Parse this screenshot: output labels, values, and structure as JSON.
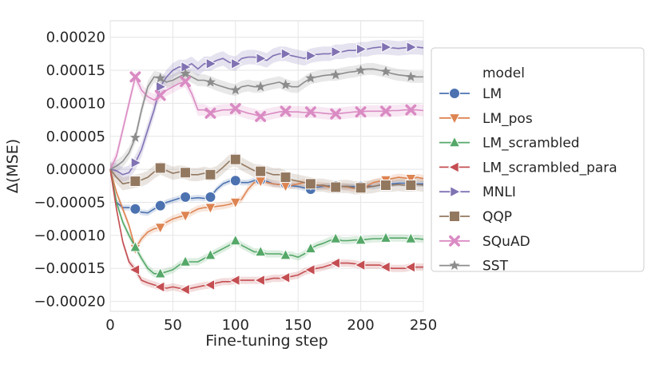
{
  "chart_data": {
    "type": "line",
    "title": "",
    "xlabel": "Fine-tuning step",
    "ylabel": "Δ(MSE)",
    "xlim": [
      0,
      250
    ],
    "ylim": [
      -0.000215,
      0.000225
    ],
    "grid": true,
    "legend_title": "model",
    "legend_position": "outside-right",
    "x_ticks": [
      0,
      50,
      100,
      150,
      200,
      250
    ],
    "x_tick_labels": [
      "0",
      "50",
      "100",
      "150",
      "200",
      "250"
    ],
    "y_ticks": [
      -0.0002,
      -0.00015,
      -0.0001,
      -5e-05,
      0,
      5e-05,
      0.0001,
      0.00015,
      0.0002
    ],
    "y_tick_labels": [
      "−0.00020",
      "−0.00015",
      "−0.00010",
      "−0.00005",
      "0.00000",
      "0.00005",
      "0.00010",
      "0.00015",
      "0.00020"
    ],
    "x": [
      0,
      5,
      10,
      15,
      20,
      25,
      30,
      35,
      40,
      45,
      50,
      55,
      60,
      65,
      70,
      75,
      80,
      85,
      90,
      95,
      100,
      105,
      110,
      115,
      120,
      125,
      130,
      135,
      140,
      145,
      150,
      155,
      160,
      165,
      170,
      175,
      180,
      185,
      190,
      195,
      200,
      205,
      210,
      215,
      220,
      225,
      230,
      235,
      240,
      245,
      250
    ],
    "marker_every": 4,
    "series": [
      {
        "name": "LM",
        "color": "#4c72b0",
        "marker": "circle",
        "values": [
          0,
          -5e-05,
          -5.8e-05,
          -5.8e-05,
          -6e-05,
          -6.5e-05,
          -6.6e-05,
          -6e-05,
          -5.5e-05,
          -5e-05,
          -4.7e-05,
          -4.4e-05,
          -4.2e-05,
          -4.4e-05,
          -4.3e-05,
          -4.4e-05,
          -4.2e-05,
          -3e-05,
          -2.2e-05,
          -1.8e-05,
          -1.7e-05,
          -2e-05,
          -2e-05,
          -1.7e-05,
          -1.6e-05,
          -1.8e-05,
          -2.2e-05,
          -2.3e-05,
          -2.2e-05,
          -2.5e-05,
          -2.6e-05,
          -2.8e-05,
          -3e-05,
          -2.7e-05,
          -2.6e-05,
          -2.5e-05,
          -2.5e-05,
          -2.6e-05,
          -2.6e-05,
          -2.6e-05,
          -2.6e-05,
          -2.5e-05,
          -2.6e-05,
          -2.4e-05,
          -2.2e-05,
          -2.2e-05,
          -2.1e-05,
          -2.1e-05,
          -2.2e-05,
          -2.2e-05,
          -2.2e-05
        ],
        "band": 4.5e-06
      },
      {
        "name": "LM_pos",
        "color": "#dd8452",
        "marker": "triangle-down",
        "values": [
          0,
          -3.5e-05,
          -6e-05,
          -8.5e-05,
          -0.00012,
          -0.000105,
          -9.5e-05,
          -9e-05,
          -8.8e-05,
          -8e-05,
          -7.5e-05,
          -7.2e-05,
          -7e-05,
          -6.5e-05,
          -6e-05,
          -5.8e-05,
          -5.8e-05,
          -5.6e-05,
          -5.5e-05,
          -5.3e-05,
          -5e-05,
          -4.5e-05,
          -3e-05,
          -2e-05,
          -1.8e-05,
          -2e-05,
          -2.2e-05,
          -2.3e-05,
          -2.5e-05,
          -2.4e-05,
          -2.2e-05,
          -2e-05,
          -2.2e-05,
          -2.4e-05,
          -2.5e-05,
          -2.7e-05,
          -2.8e-05,
          -2.6e-05,
          -2.7e-05,
          -2.9e-05,
          -3e-05,
          -2.5e-05,
          -2e-05,
          -1.8e-05,
          -1.6e-05,
          -1.4e-05,
          -1.2e-05,
          -1.3e-05,
          -1.4e-05,
          -1.2e-05,
          -1.4e-05
        ],
        "band": 5.5e-06
      },
      {
        "name": "LM_scrambled",
        "color": "#55a868",
        "marker": "triangle-up",
        "values": [
          0,
          -5e-05,
          -8e-05,
          -0.0001,
          -0.000118,
          -0.000135,
          -0.00015,
          -0.000158,
          -0.000158,
          -0.000155,
          -0.000152,
          -0.000145,
          -0.00014,
          -0.00014,
          -0.00014,
          -0.000135,
          -0.00013,
          -0.000125,
          -0.00012,
          -0.000115,
          -0.000108,
          -0.000115,
          -0.00012,
          -0.000125,
          -0.000125,
          -0.000128,
          -0.000128,
          -0.000128,
          -0.00013,
          -0.00013,
          -0.000133,
          -0.000128,
          -0.00012,
          -0.000115,
          -0.000112,
          -0.000108,
          -0.000105,
          -0.000108,
          -0.000108,
          -0.000107,
          -0.000107,
          -0.000106,
          -0.000105,
          -0.000105,
          -0.000104,
          -0.000104,
          -0.000104,
          -0.000104,
          -0.000105,
          -0.000105,
          -0.000106
        ],
        "band": 5.5e-06
      },
      {
        "name": "LM_scrambled_para",
        "color": "#c44e52",
        "marker": "triangle-left",
        "values": [
          0,
          -6e-05,
          -0.00011,
          -0.00014,
          -0.000152,
          -0.000168,
          -0.000172,
          -0.000175,
          -0.000178,
          -0.00018,
          -0.000178,
          -0.00018,
          -0.000182,
          -0.00018,
          -0.000178,
          -0.000176,
          -0.000175,
          -0.000172,
          -0.00017,
          -0.00017,
          -0.000168,
          -0.000168,
          -0.000168,
          -0.000168,
          -0.000168,
          -0.000167,
          -0.000165,
          -0.000165,
          -0.000164,
          -0.000162,
          -0.00016,
          -0.000155,
          -0.000152,
          -0.00015,
          -0.000148,
          -0.000145,
          -0.000142,
          -0.000142,
          -0.000142,
          -0.000143,
          -0.000145,
          -0.000145,
          -0.000145,
          -0.000145,
          -0.000148,
          -0.00015,
          -0.00015,
          -0.00015,
          -0.000148,
          -0.000148,
          -0.000148
        ],
        "band": 5.5e-06
      },
      {
        "name": "MNLI",
        "color": "#8172b3",
        "marker": "triangle-right",
        "values": [
          0,
          -2e-06,
          -8e-06,
          -5e-06,
          1e-05,
          3e-05,
          6e-05,
          9e-05,
          0.000125,
          0.00014,
          0.00015,
          0.000155,
          0.000155,
          0.00016,
          0.000152,
          0.00016,
          0.00016,
          0.000165,
          0.000168,
          0.000162,
          0.00016,
          0.000168,
          0.00017,
          0.00017,
          0.000168,
          0.000165,
          0.000172,
          0.000175,
          0.000175,
          0.000172,
          0.00017,
          0.000168,
          0.000172,
          0.000174,
          0.000175,
          0.000175,
          0.000178,
          0.000178,
          0.00018,
          0.00018,
          0.000182,
          0.000182,
          0.000184,
          0.000185,
          0.000185,
          0.000184,
          0.000183,
          0.000184,
          0.000185,
          0.000185,
          0.000184
        ],
        "band": 1.1e-05
      },
      {
        "name": "QQP",
        "color": "#937860",
        "marker": "square",
        "values": [
          0,
          -1.2e-05,
          -2.2e-05,
          -2e-05,
          -1.8e-05,
          -1.6e-05,
          -1.2e-05,
          -4e-06,
          2e-06,
          -2e-06,
          -6e-06,
          -4e-06,
          -5e-06,
          -8e-06,
          -8e-06,
          -6e-06,
          -8e-06,
          -5e-06,
          3e-06,
          1.2e-05,
          1.5e-05,
          8e-06,
          3e-06,
          -2e-06,
          -3e-06,
          -5e-06,
          -8e-06,
          -8e-06,
          -1.2e-05,
          -1.6e-05,
          -1.8e-05,
          -2e-05,
          -2.2e-05,
          -2.4e-05,
          -2.4e-05,
          -2.6e-05,
          -2.7e-05,
          -2.6e-05,
          -2.6e-05,
          -2.8e-05,
          -2.8e-05,
          -2.7e-05,
          -2.6e-05,
          -2.4e-05,
          -2.4e-05,
          -2.4e-05,
          -2.3e-05,
          -2.4e-05,
          -2.4e-05,
          -2.3e-05,
          -2.4e-05
        ],
        "band": 1e-05
      },
      {
        "name": "SQuAD",
        "color": "#da8bc3",
        "marker": "x",
        "values": [
          0,
          2e-05,
          6e-05,
          0.0001,
          0.00014,
          0.00012,
          0.00011,
          0.000105,
          0.000112,
          0.00012,
          0.000125,
          0.00013,
          0.000133,
          0.000115,
          9e-05,
          9e-05,
          8.5e-05,
          8.8e-05,
          9e-05,
          9e-05,
          9.2e-05,
          8.8e-05,
          8.5e-05,
          8.3e-05,
          8e-05,
          8.3e-05,
          8.5e-05,
          8.7e-05,
          8.8e-05,
          8.7e-05,
          8.7e-05,
          8.6e-05,
          8.7e-05,
          8.6e-05,
          8.5e-05,
          8.4e-05,
          8.4e-05,
          8.5e-05,
          8.6e-05,
          8.7e-05,
          8.7e-05,
          8.8e-05,
          8.8e-05,
          8.8e-05,
          8.8e-05,
          8.9e-05,
          8.9e-05,
          9e-05,
          9e-05,
          9e-05,
          8.9e-05
        ],
        "band": 9e-06
      },
      {
        "name": "SST",
        "color": "#8c8c8c",
        "marker": "star",
        "values": [
          0,
          5e-06,
          1.2e-05,
          2.5e-05,
          4.8e-05,
          9e-05,
          0.000125,
          0.00014,
          0.000138,
          0.000132,
          0.000135,
          0.00014,
          0.000145,
          0.00014,
          0.000135,
          0.000135,
          0.000132,
          0.000128,
          0.000125,
          0.000122,
          0.00012,
          0.000125,
          0.000127,
          0.000125,
          0.000125,
          0.000128,
          0.00013,
          0.000132,
          0.000128,
          0.000125,
          0.000125,
          0.000132,
          0.000138,
          0.00014,
          0.000142,
          0.000143,
          0.000143,
          0.000145,
          0.000147,
          0.000148,
          0.00015,
          0.000152,
          0.000152,
          0.00015,
          0.000148,
          0.000145,
          0.000143,
          0.000142,
          0.00014,
          0.00014,
          0.00014
        ],
        "band": 9e-06
      }
    ]
  }
}
